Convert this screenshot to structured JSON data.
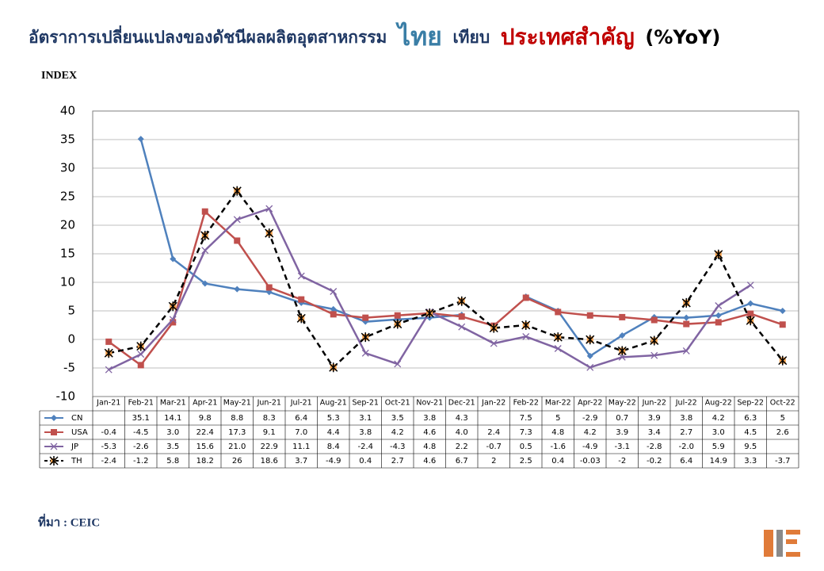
{
  "chart_data": {
    "type": "line",
    "title": [
      "อัตราการเปลี่ยนแปลงของดัชนีผลผลิตอุตสาหกรรม",
      "ไทย",
      "เทียบ",
      "ประเทศสำคัญ",
      "(%YoY)"
    ],
    "y_label": "INDEX",
    "source": "ที่มา : CEIC",
    "categories": [
      "Jan-21",
      "Feb-21",
      "Mar-21",
      "Apr-21",
      "May-21",
      "Jun-21",
      "Jul-21",
      "Aug-21",
      "Sep-21",
      "Oct-21",
      "Nov-21",
      "Dec-21",
      "Jan-22",
      "Feb-22",
      "Mar-22",
      "Apr-22",
      "May-22",
      "Jun-22",
      "Jul-22",
      "Aug-22",
      "Sep-22",
      "Oct-22"
    ],
    "ylim": [
      -10,
      40
    ],
    "yticks": [
      -10,
      -5,
      0,
      5,
      10,
      15,
      20,
      25,
      30,
      35,
      40
    ],
    "series": [
      {
        "name": "CN",
        "color": "#4f81bd",
        "marker": "diamond",
        "values": [
          null,
          35.1,
          14.1,
          9.8,
          8.8,
          8.3,
          6.4,
          5.3,
          3.1,
          3.5,
          3.8,
          4.3,
          null,
          7.5,
          5,
          -2.9,
          0.7,
          3.9,
          3.8,
          4.2,
          6.3,
          5
        ],
        "value_labels": [
          null,
          "35.1",
          "14.1",
          "9.8",
          "8.8",
          "8.3",
          "6.4",
          "5.3",
          "3.1",
          "3.5",
          "3.8",
          "4.3",
          null,
          "7.5",
          "5",
          "-2.9",
          "0.7",
          "3.9",
          "3.8",
          "4.2",
          "6.3",
          "5"
        ]
      },
      {
        "name": "USA",
        "color": "#c0504d",
        "marker": "square",
        "values": [
          -0.4,
          -4.5,
          3.0,
          22.4,
          17.3,
          9.1,
          7.0,
          4.4,
          3.8,
          4.2,
          4.6,
          4.0,
          2.4,
          7.3,
          4.8,
          4.2,
          3.9,
          3.4,
          2.7,
          3.0,
          4.5,
          2.6
        ],
        "value_labels": [
          "-0.4",
          "-4.5",
          "3.0",
          "22.4",
          "17.3",
          "9.1",
          "7.0",
          "4.4",
          "3.8",
          "4.2",
          "4.6",
          "4.0",
          "2.4",
          "7.3",
          "4.8",
          "4.2",
          "3.9",
          "3.4",
          "2.7",
          "3.0",
          "4.5",
          "2.6"
        ]
      },
      {
        "name": "JP",
        "color": "#8064a2",
        "marker": "x",
        "values": [
          -5.3,
          -2.6,
          3.5,
          15.6,
          21.0,
          22.9,
          11.1,
          8.4,
          -2.4,
          -4.3,
          4.8,
          2.2,
          -0.7,
          0.5,
          -1.6,
          -4.9,
          -3.1,
          -2.8,
          -2.0,
          5.9,
          9.5,
          null
        ],
        "value_labels": [
          "-5.3",
          "-2.6",
          "3.5",
          "15.6",
          "21.0",
          "22.9",
          "11.1",
          "8.4",
          "-2.4",
          "-4.3",
          "4.8",
          "2.2",
          "-0.7",
          "0.5",
          "-1.6",
          "-4.9",
          "-3.1",
          "-2.8",
          "-2.0",
          "5.9",
          "9.5",
          null
        ]
      },
      {
        "name": "TH",
        "color": "#000000",
        "marker": "star",
        "dashed": true,
        "values": [
          -2.4,
          -1.2,
          5.8,
          18.2,
          26,
          18.6,
          3.7,
          -4.9,
          0.4,
          2.7,
          4.6,
          6.7,
          2,
          2.5,
          0.4,
          -0.03,
          -2,
          -0.2,
          6.4,
          14.9,
          3.3,
          -3.7
        ],
        "value_labels": [
          "-2.4",
          "-1.2",
          "5.8",
          "18.2",
          "26",
          "18.6",
          "3.7",
          "-4.9",
          "0.4",
          "2.7",
          "4.6",
          "6.7",
          "2",
          "2.5",
          "0.4",
          "-0.03",
          "-2",
          "-0.2",
          "6.4",
          "14.9",
          "3.3",
          "-3.7"
        ]
      }
    ]
  }
}
